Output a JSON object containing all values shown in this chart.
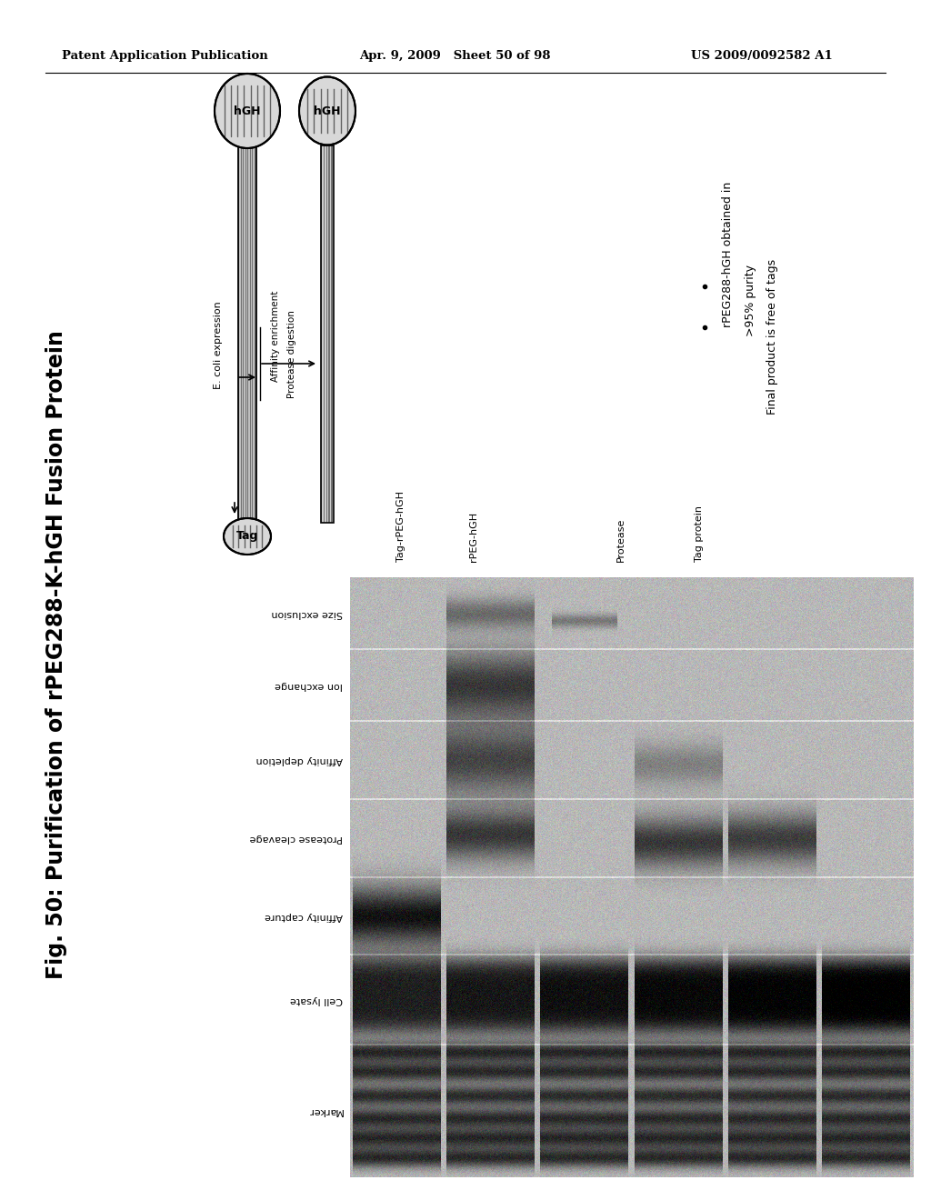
{
  "header_left": "Patent Application Publication",
  "header_mid": "Apr. 9, 2009   Sheet 50 of 98",
  "header_right": "US 2009/0092582 A1",
  "figure_title": "Fig. 50: Purification of rPEG288-K-hGH Fusion Protein",
  "ecoli_label": "E. coli expression",
  "affinity_label": "Affinity enrichment",
  "protease_label": "Protease digestion",
  "hGH_text": "hGH",
  "tag_text": "Tag",
  "gel_row_labels": [
    "Size exclusion",
    "Ion exchange",
    "Affinity depletion",
    "Protease cleavage",
    "Affinity capture",
    "Cell lysate",
    "Marker"
  ],
  "gel_col_labels": [
    "Tag-rPEG-hGH",
    "rPEG-hGH",
    "Protease",
    "Tag protein"
  ],
  "bullet_line1": "rPEG288-hGH obtained in",
  "bullet_line2": ">95% purity",
  "bullet_line3": "Final product is free of tags",
  "bg_color": "#ffffff"
}
